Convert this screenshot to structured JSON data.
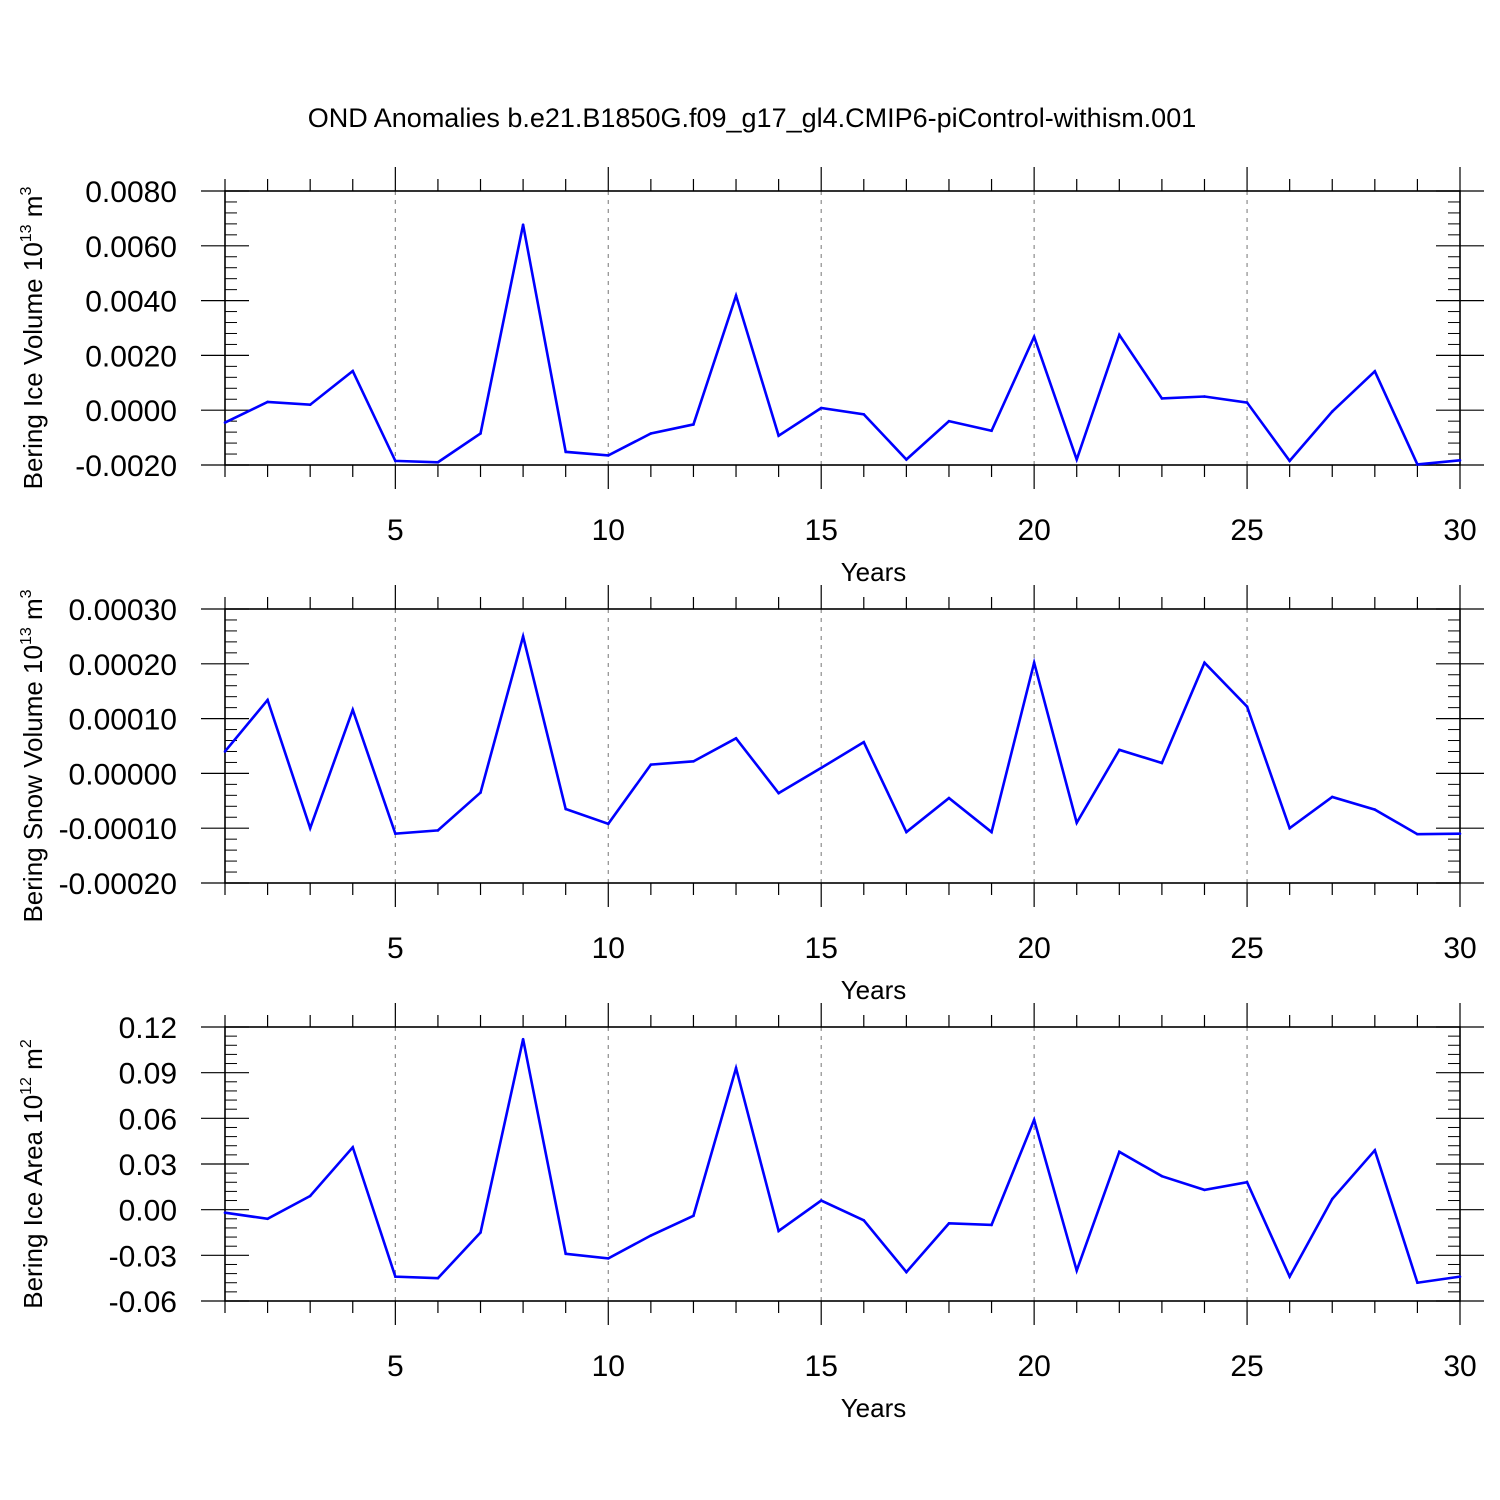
{
  "title": "OND Anomalies b.e21.B1850G.f09_g17_gl4.CMIP6-piControl-withism.001",
  "colors": {
    "series": "#0000ff",
    "axis": "#000000",
    "grid": "#8c8c8c"
  },
  "chart_data": [
    {
      "type": "line",
      "ylabel": {
        "main": "Bering Ice Volume 10",
        "sup_exp": "13",
        "unit": " m",
        "sup_unit": "3"
      },
      "xlabel": "Years",
      "xlim": [
        1,
        30
      ],
      "xticks": [
        5,
        10,
        15,
        20,
        25,
        30
      ],
      "xtick_labels": [
        "5",
        "10",
        "15",
        "20",
        "25",
        "30"
      ],
      "ylim": [
        -0.002,
        0.008
      ],
      "yticks": [
        -0.002,
        0.0,
        0.002,
        0.004,
        0.006,
        0.008
      ],
      "ytick_labels": [
        "-0.0020",
        "0.0000",
        "0.0020",
        "0.0040",
        "0.0060",
        "0.0080"
      ],
      "series": [
        {
          "name": "Bering Ice Volume",
          "x": [
            1,
            2,
            3,
            4,
            5,
            6,
            7,
            8,
            9,
            10,
            11,
            12,
            13,
            14,
            15,
            16,
            17,
            18,
            19,
            20,
            21,
            22,
            23,
            24,
            25,
            26,
            27,
            28,
            29,
            30
          ],
          "values": [
            -0.00045,
            0.0003,
            0.0002,
            0.00143,
            -0.00185,
            -0.0019,
            -0.00085,
            0.00677,
            -0.00152,
            -0.00165,
            -0.00085,
            -0.00052,
            0.00418,
            -0.00093,
            8e-05,
            -0.00015,
            -0.0018,
            -0.0004,
            -0.00075,
            0.00268,
            -0.0018,
            0.00275,
            0.00043,
            0.0005,
            0.00028,
            -0.00185,
            -5e-05,
            0.00142,
            -0.00198,
            -0.00183
          ]
        }
      ]
    },
    {
      "type": "line",
      "ylabel": {
        "main": "Bering Snow Volume 10",
        "sup_exp": "13",
        "unit": " m",
        "sup_unit": "3"
      },
      "xlabel": "Years",
      "xlim": [
        1,
        30
      ],
      "xticks": [
        5,
        10,
        15,
        20,
        25,
        30
      ],
      "xtick_labels": [
        "5",
        "10",
        "15",
        "20",
        "25",
        "30"
      ],
      "ylim": [
        -0.0002,
        0.0003
      ],
      "yticks": [
        -0.0002,
        -0.0001,
        0.0,
        0.0001,
        0.0002,
        0.0003
      ],
      "ytick_labels": [
        "-0.00020",
        "-0.00010",
        "0.00000",
        "0.00010",
        "0.00020",
        "0.00030"
      ],
      "series": [
        {
          "name": "Bering Snow Volume",
          "x": [
            1,
            2,
            3,
            4,
            5,
            6,
            7,
            8,
            9,
            10,
            11,
            12,
            13,
            14,
            15,
            16,
            17,
            18,
            19,
            20,
            21,
            22,
            23,
            24,
            25,
            26,
            27,
            28,
            29,
            30
          ],
          "values": [
            4e-05,
            0.000134,
            -0.0001,
            0.000116,
            -0.00011,
            -0.000104,
            -3.5e-05,
            0.00025,
            -6.5e-05,
            -9.2e-05,
            1.6e-05,
            2.2e-05,
            6.4e-05,
            -3.6e-05,
            1e-05,
            5.7e-05,
            -0.000107,
            -4.5e-05,
            -0.000107,
            0.000202,
            -9e-05,
            4.3e-05,
            1.9e-05,
            0.000202,
            0.000122,
            -0.0001,
            -4.3e-05,
            -6.6e-05,
            -0.000111,
            -0.00011
          ]
        }
      ]
    },
    {
      "type": "line",
      "ylabel": {
        "main": "Bering Ice Area 10",
        "sup_exp": "12",
        "unit": " m",
        "sup_unit": "2"
      },
      "xlabel": "Years",
      "xlim": [
        1,
        30
      ],
      "xticks": [
        5,
        10,
        15,
        20,
        25,
        30
      ],
      "xtick_labels": [
        "5",
        "10",
        "15",
        "20",
        "25",
        "30"
      ],
      "ylim": [
        -0.06,
        0.12
      ],
      "yticks": [
        -0.06,
        -0.03,
        0.0,
        0.03,
        0.06,
        0.09,
        0.12
      ],
      "ytick_labels": [
        "-0.06",
        "-0.03",
        "0.00",
        "0.03",
        "0.06",
        "0.09",
        "0.12"
      ],
      "series": [
        {
          "name": "Bering Ice Area",
          "x": [
            1,
            2,
            3,
            4,
            5,
            6,
            7,
            8,
            9,
            10,
            11,
            12,
            13,
            14,
            15,
            16,
            17,
            18,
            19,
            20,
            21,
            22,
            23,
            24,
            25,
            26,
            27,
            28,
            29,
            30
          ],
          "values": [
            -0.002,
            -0.006,
            0.009,
            0.041,
            -0.044,
            -0.045,
            -0.015,
            0.112,
            -0.029,
            -0.032,
            -0.017,
            -0.004,
            0.093,
            -0.014,
            0.006,
            -0.007,
            -0.041,
            -0.009,
            -0.01,
            0.059,
            -0.04,
            0.038,
            0.022,
            0.013,
            0.018,
            -0.044,
            0.007,
            0.039,
            -0.048,
            -0.044
          ]
        }
      ]
    }
  ]
}
